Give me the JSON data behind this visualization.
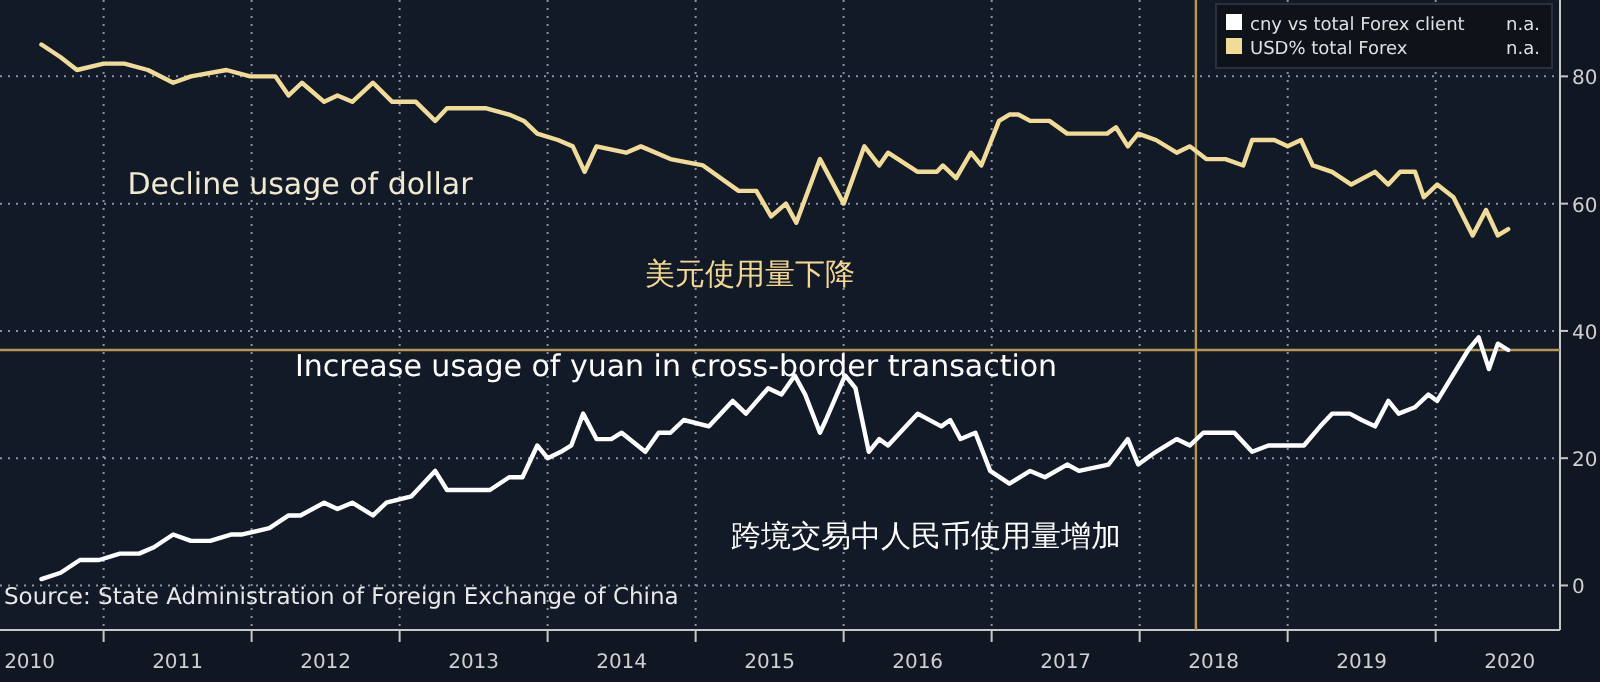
{
  "chart_data": {
    "type": "line",
    "xlim": [
      2010.3,
      2020.84
    ],
    "ylim": [
      -7,
      92
    ],
    "xticks": [
      {
        "value": 2011,
        "label": null
      },
      {
        "value": 2012,
        "label": null
      },
      {
        "value": 2013,
        "label": null
      },
      {
        "value": 2014,
        "label": null
      },
      {
        "value": 2015,
        "label": null
      },
      {
        "value": 2016,
        "label": null
      },
      {
        "value": 2017,
        "label": null
      },
      {
        "value": 2018,
        "label": null
      },
      {
        "value": 2019,
        "label": null
      },
      {
        "value": 2020,
        "label": null
      },
      {
        "value": 2010.5,
        "label": "2010"
      },
      {
        "value": 2011.5,
        "label": "2011"
      },
      {
        "value": 2012.5,
        "label": "2012"
      },
      {
        "value": 2013.5,
        "label": "2013"
      },
      {
        "value": 2014.5,
        "label": "2014"
      },
      {
        "value": 2015.5,
        "label": "2015"
      },
      {
        "value": 2016.5,
        "label": "2016"
      },
      {
        "value": 2017.5,
        "label": "2017"
      },
      {
        "value": 2018.5,
        "label": "2018"
      },
      {
        "value": 2019.5,
        "label": "2019"
      },
      {
        "value": 2020.5,
        "label": "2020"
      }
    ],
    "yticks": [
      0,
      20,
      40,
      60,
      80
    ],
    "grid": true,
    "legend": "top right",
    "marker": "none",
    "line_style": "solid",
    "series": [
      {
        "name": "cny vs total Forex client",
        "color": "#ffffff",
        "x": [
          2010.58,
          2010.71,
          2010.84,
          2010.97,
          2011.11,
          2011.24,
          2011.34,
          2011.47,
          2011.59,
          2011.72,
          2011.86,
          2011.93,
          2012.12,
          2012.25,
          2012.33,
          2012.49,
          2012.58,
          2012.68,
          2012.82,
          2012.91,
          2013.08,
          2013.24,
          2013.32,
          2013.43,
          2013.61,
          2013.74,
          2013.83,
          2013.93,
          2014.0,
          2014.09,
          2014.16,
          2014.24,
          2014.33,
          2014.43,
          2014.5,
          2014.66,
          2014.75,
          2014.83,
          2014.92,
          2015.09,
          2015.25,
          2015.34,
          2015.49,
          2015.58,
          2015.67,
          2015.74,
          2015.84,
          2015.88,
          2016.01,
          2016.08,
          2016.17,
          2016.24,
          2016.3,
          2016.5,
          2016.66,
          2016.72,
          2016.79,
          2016.89,
          2016.99,
          2017.12,
          2017.26,
          2017.36,
          2017.51,
          2017.59,
          2017.79,
          2017.92,
          2017.99,
          2018.11,
          2018.25,
          2018.34,
          2018.43,
          2018.64,
          2018.76,
          2018.87,
          2019.0,
          2019.11,
          2019.22,
          2019.3,
          2019.42,
          2019.5,
          2019.59,
          2019.68,
          2019.75,
          2019.86,
          2019.95,
          2020.01,
          2020.22,
          2020.29,
          2020.36,
          2020.42,
          2020.49
        ],
        "values": [
          1,
          2,
          4,
          4,
          5,
          5,
          6,
          8,
          7,
          7,
          8,
          8,
          9,
          11,
          11,
          13,
          12,
          13,
          11,
          13,
          14,
          18,
          15,
          15,
          15,
          17,
          17,
          22,
          20,
          21,
          22,
          27,
          23,
          23,
          24,
          21,
          24,
          24,
          26,
          25,
          29,
          27,
          31,
          30,
          33,
          30,
          24,
          26,
          33,
          31,
          21,
          23,
          22,
          27,
          25,
          26,
          23,
          24,
          18,
          16,
          18,
          17,
          19,
          18,
          19,
          23,
          19,
          21,
          23,
          22,
          24,
          24,
          21,
          22,
          22,
          22,
          25,
          27,
          27,
          26,
          25,
          29,
          27,
          28,
          30,
          29,
          37,
          39,
          34,
          38,
          37
        ]
      },
      {
        "name": "USD% total Forex",
        "color": "#f0dc96",
        "x": [
          2010.58,
          2010.71,
          2010.82,
          2011.0,
          2011.14,
          2011.3,
          2011.47,
          2011.59,
          2011.83,
          2011.99,
          2012.16,
          2012.25,
          2012.34,
          2012.49,
          2012.58,
          2012.68,
          2012.82,
          2012.95,
          2013.11,
          2013.24,
          2013.32,
          2013.58,
          2013.74,
          2013.84,
          2013.93,
          2014.07,
          2014.17,
          2014.25,
          2014.33,
          2014.53,
          2014.63,
          2014.83,
          2015.05,
          2015.29,
          2015.41,
          2015.51,
          2015.61,
          2015.68,
          2015.84,
          2016.0,
          2016.14,
          2016.24,
          2016.3,
          2016.5,
          2016.63,
          2016.67,
          2016.76,
          2016.86,
          2016.93,
          2017.05,
          2017.12,
          2017.18,
          2017.26,
          2017.39,
          2017.51,
          2017.64,
          2017.78,
          2017.84,
          2017.92,
          2017.99,
          2018.11,
          2018.25,
          2018.34,
          2018.45,
          2018.58,
          2018.7,
          2018.76,
          2018.91,
          2019.0,
          2019.09,
          2019.17,
          2019.3,
          2019.43,
          2019.59,
          2019.68,
          2019.76,
          2019.86,
          2019.92,
          2020.01,
          2020.12,
          2020.25,
          2020.34,
          2020.42,
          2020.49
        ],
        "values": [
          85,
          83,
          81,
          82,
          82,
          81,
          79,
          80,
          81,
          80,
          80,
          77,
          79,
          76,
          77,
          76,
          79,
          76,
          76,
          73,
          75,
          75,
          74,
          73,
          71,
          70,
          69,
          65,
          69,
          68,
          69,
          67,
          66,
          62,
          62,
          58,
          60,
          57,
          67,
          60,
          69,
          66,
          68,
          65,
          65,
          66,
          64,
          68,
          66,
          73,
          74,
          74,
          73,
          73,
          71,
          71,
          71,
          72,
          69,
          71,
          70,
          68,
          69,
          67,
          67,
          66,
          70,
          70,
          69,
          70,
          66,
          65,
          63,
          65,
          63,
          65,
          65,
          61,
          63,
          61,
          55,
          59,
          55,
          56
        ]
      }
    ],
    "ref_lines": [
      {
        "axis": "y",
        "value": 37,
        "color": "#b8984e"
      },
      {
        "axis": "x",
        "value": 2018.38,
        "color": "#b8984e"
      }
    ],
    "annotations": [
      "Decline usage of dollar",
      "美元使用量下降",
      "Increase usage of yuan in cross-border transaction",
      "跨境交易中人民币使用量增加",
      "Source: State Administration of Foreign Exchange of China",
      "n.a.",
      "n.a."
    ]
  }
}
